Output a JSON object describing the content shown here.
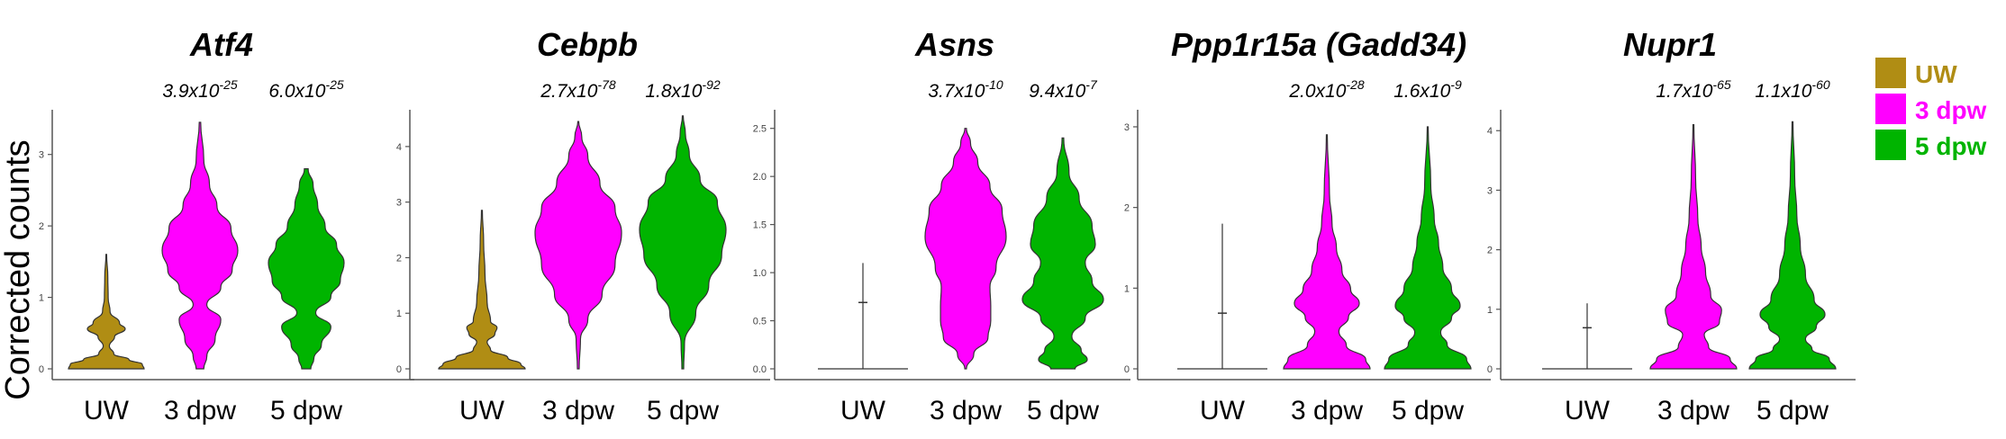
{
  "chart_data": [
    {
      "type": "violin",
      "title": "Atf4",
      "categories": [
        "UW",
        "3 dpw",
        "5 dpw"
      ],
      "pvalues": [
        {
          "base": "3.9x10",
          "exp": "-25"
        },
        {
          "base": "6.0x10",
          "exp": "-25"
        }
      ],
      "ylim": [
        0,
        3.5
      ],
      "yticks": [
        0,
        1,
        2,
        3
      ],
      "ytick_labels": [
        "0",
        "1",
        "2",
        "3"
      ],
      "max": [
        1.6,
        3.45,
        2.8
      ],
      "median": [
        0.6,
        1.6,
        1.5
      ]
    },
    {
      "type": "violin",
      "title": "Cebpb",
      "categories": [
        "UW",
        "3 dpw",
        "5 dpw"
      ],
      "pvalues": [
        {
          "base": "2.7x10",
          "exp": "-78"
        },
        {
          "base": "1.8x10",
          "exp": "-92"
        }
      ],
      "ylim": [
        0,
        4.5
      ],
      "yticks": [
        0,
        1,
        2,
        3,
        4
      ],
      "ytick_labels": [
        "0",
        "1",
        "2",
        "3",
        "4"
      ],
      "max": [
        2.85,
        4.45,
        4.55
      ],
      "median": [
        0.6,
        2.7,
        2.6
      ]
    },
    {
      "type": "violin",
      "title": "Asns",
      "categories": [
        "UW",
        "3 dpw",
        "5 dpw"
      ],
      "pvalues": [
        {
          "base": "3.7x10",
          "exp": "-10"
        },
        {
          "base": "9.4x10",
          "exp": "-7"
        }
      ],
      "ylim": [
        0,
        2.6
      ],
      "yticks": [
        0,
        0.5,
        1,
        1.5,
        2,
        2.5
      ],
      "ytick_labels": [
        "0.0",
        "0.5",
        "1.0",
        "1.5",
        "2.0",
        "2.5"
      ],
      "max": [
        1.1,
        2.5,
        2.4
      ],
      "median": [
        0.69,
        1.2,
        1.1
      ]
    },
    {
      "type": "violin",
      "title": "Ppp1r15a (Gadd34)",
      "categories": [
        "UW",
        "3 dpw",
        "5 dpw"
      ],
      "pvalues": [
        {
          "base": "2.0x10",
          "exp": "-28"
        },
        {
          "base": "1.6x10",
          "exp": "-9"
        }
      ],
      "ylim": [
        0,
        3.1
      ],
      "yticks": [
        0,
        1,
        2,
        3
      ],
      "ytick_labels": [
        "0",
        "1",
        "2",
        "3"
      ],
      "max": [
        1.8,
        2.9,
        3.0
      ],
      "median": [
        0.69,
        0.7,
        0.7
      ]
    },
    {
      "type": "violin",
      "title": "Nupr1",
      "categories": [
        "UW",
        "3 dpw",
        "5 dpw"
      ],
      "pvalues": [
        {
          "base": "1.7x10",
          "exp": "-65"
        },
        {
          "base": "1.1x10",
          "exp": "-60"
        }
      ],
      "ylim": [
        0,
        4.2
      ],
      "yticks": [
        0,
        1,
        2,
        3,
        4
      ],
      "ytick_labels": [
        "0",
        "1",
        "2",
        "3",
        "4"
      ],
      "max": [
        1.1,
        4.1,
        4.15
      ],
      "median": [
        0.69,
        0.8,
        0.8
      ]
    }
  ],
  "ylabel": "Corrected counts",
  "legend": {
    "placement": "right",
    "entries": [
      {
        "label": "UW",
        "color": "#b08d14"
      },
      {
        "label": "3 dpw",
        "color": "#ff00ff"
      },
      {
        "label": "5 dpw",
        "color": "#00b400"
      }
    ]
  }
}
